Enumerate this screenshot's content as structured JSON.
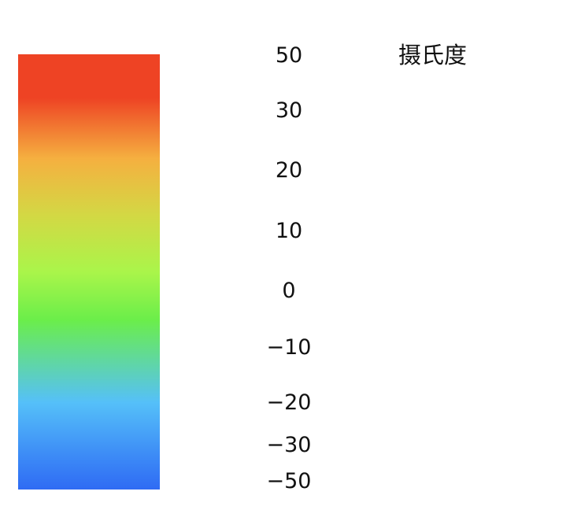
{
  "legend": {
    "unit": "摄氏度",
    "ticks": [
      {
        "value": 50,
        "label": "50",
        "color": "#ee4324"
      },
      {
        "value": 30,
        "label": "30",
        "color": "#ee4324"
      },
      {
        "value": 20,
        "label": "20",
        "color": "#f5b040"
      },
      {
        "value": 10,
        "label": "10",
        "color": "#d3d844"
      },
      {
        "value": 0,
        "label": "0",
        "color": "#aaf54a"
      },
      {
        "value": -10,
        "label": "−10",
        "color": "#6bee4a"
      },
      {
        "value": -20,
        "label": "−20",
        "color": "#55c0f9"
      },
      {
        "value": -30,
        "label": "−30",
        "color": "#3d8cf6"
      },
      {
        "value": -50,
        "label": "−50",
        "color": "#2f6bf4"
      }
    ]
  }
}
